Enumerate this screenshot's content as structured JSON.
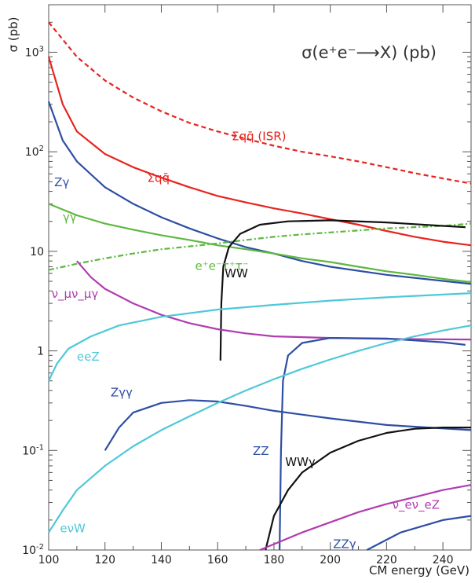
{
  "chart_data": {
    "type": "line",
    "title": "σ(e⁺e⁻⟶X) (pb)",
    "xlabel": "CM energy (GeV)",
    "ylabel": "σ (pb)",
    "xlim": [
      100,
      250
    ],
    "ylim": [
      0.01,
      3000
    ],
    "yscale": "log",
    "x_ticks": [
      100,
      120,
      140,
      160,
      180,
      200,
      220,
      240
    ],
    "y_ticks": [
      {
        "value": 0.01,
        "base": "10",
        "exp": "-2"
      },
      {
        "value": 0.1,
        "base": "10",
        "exp": "-1"
      },
      {
        "value": 1,
        "base": "1",
        "exp": ""
      },
      {
        "value": 10,
        "base": "10",
        "exp": ""
      },
      {
        "value": 100,
        "base": "10",
        "exp": "2"
      },
      {
        "value": 1000,
        "base": "10",
        "exp": "3"
      }
    ],
    "series": [
      {
        "name": "Σqq̄ (ISR)",
        "color": "#e8231d",
        "dash": "dashed",
        "label_pos": [
          165,
          130
        ],
        "points": [
          [
            100,
            2000
          ],
          [
            110,
            900
          ],
          [
            120,
            520
          ],
          [
            130,
            350
          ],
          [
            140,
            255
          ],
          [
            150,
            195
          ],
          [
            160,
            160
          ],
          [
            170,
            135
          ],
          [
            180,
            115
          ],
          [
            190,
            100
          ],
          [
            200,
            90
          ],
          [
            210,
            80
          ],
          [
            220,
            70
          ],
          [
            230,
            61
          ],
          [
            240,
            54
          ],
          [
            250,
            48
          ]
        ]
      },
      {
        "name": "Σqq̄",
        "color": "#e8231d",
        "dash": "solid",
        "label_pos": [
          135,
          50
        ],
        "points": [
          [
            100,
            900
          ],
          [
            105,
            300
          ],
          [
            110,
            160
          ],
          [
            120,
            95
          ],
          [
            130,
            70
          ],
          [
            140,
            55
          ],
          [
            150,
            44
          ],
          [
            160,
            36
          ],
          [
            170,
            31
          ],
          [
            180,
            27
          ],
          [
            190,
            24
          ],
          [
            200,
            21
          ],
          [
            210,
            18.5
          ],
          [
            220,
            16
          ],
          [
            230,
            14
          ],
          [
            240,
            12.5
          ],
          [
            250,
            11.5
          ]
        ]
      },
      {
        "name": "Zγ",
        "color": "#2e4ea3",
        "dash": "solid",
        "label_pos": [
          102,
          45
        ],
        "points": [
          [
            100,
            320
          ],
          [
            105,
            130
          ],
          [
            110,
            80
          ],
          [
            120,
            44
          ],
          [
            130,
            30
          ],
          [
            140,
            22
          ],
          [
            150,
            17
          ],
          [
            160,
            13.5
          ],
          [
            170,
            11
          ],
          [
            180,
            9.5
          ],
          [
            190,
            8
          ],
          [
            200,
            7
          ],
          [
            220,
            5.8
          ],
          [
            250,
            4.7
          ]
        ]
      },
      {
        "name": "γγ",
        "color": "#5db840",
        "dash": "solid",
        "label_pos": [
          105,
          20
        ],
        "points": [
          [
            100,
            30
          ],
          [
            110,
            23
          ],
          [
            120,
            19
          ],
          [
            130,
            16.5
          ],
          [
            140,
            14.5
          ],
          [
            150,
            13
          ],
          [
            160,
            11.5
          ],
          [
            170,
            10.5
          ],
          [
            180,
            9.5
          ],
          [
            190,
            8.5
          ],
          [
            200,
            7.8
          ],
          [
            210,
            7
          ],
          [
            220,
            6.3
          ],
          [
            230,
            5.8
          ],
          [
            240,
            5.3
          ],
          [
            250,
            4.9
          ]
        ]
      },
      {
        "name": "e⁺e⁻τ⁺τ⁻",
        "color": "#5db840",
        "dash": "dashdot",
        "label_pos": [
          152,
          6.5
        ],
        "points": [
          [
            100,
            6.5
          ],
          [
            110,
            7.5
          ],
          [
            120,
            8.5
          ],
          [
            130,
            9.5
          ],
          [
            140,
            10.5
          ],
          [
            150,
            11.2
          ],
          [
            160,
            12
          ],
          [
            170,
            13
          ],
          [
            180,
            14
          ],
          [
            190,
            14.8
          ],
          [
            200,
            15.5
          ],
          [
            210,
            16.2
          ],
          [
            220,
            17
          ],
          [
            230,
            17.5
          ],
          [
            240,
            18
          ],
          [
            250,
            19
          ]
        ]
      },
      {
        "name": "WW",
        "color": "#111111",
        "dash": "solid",
        "label_pos": [
          162.5,
          5.5
        ],
        "points": [
          [
            161,
            0.8
          ],
          [
            161.3,
            3
          ],
          [
            162,
            7
          ],
          [
            164,
            11
          ],
          [
            168,
            15
          ],
          [
            175,
            18.5
          ],
          [
            185,
            20
          ],
          [
            200,
            20.5
          ],
          [
            220,
            19.5
          ],
          [
            240,
            18
          ],
          [
            248,
            17.5
          ]
        ]
      },
      {
        "name": "ν_μν_μγ",
        "color": "#b03cb0",
        "dash": "solid",
        "label_pos": [
          101,
          3.4
        ],
        "points": [
          [
            110,
            8
          ],
          [
            115,
            5.5
          ],
          [
            120,
            4.2
          ],
          [
            130,
            3
          ],
          [
            140,
            2.3
          ],
          [
            150,
            1.9
          ],
          [
            160,
            1.65
          ],
          [
            170,
            1.5
          ],
          [
            180,
            1.4
          ],
          [
            200,
            1.35
          ],
          [
            220,
            1.32
          ],
          [
            250,
            1.3
          ]
        ]
      },
      {
        "name": "eeZ",
        "color": "#4fc8d8",
        "dash": "solid",
        "label_pos": [
          110,
          0.8
        ],
        "points": [
          [
            100,
            0.5
          ],
          [
            103,
            0.75
          ],
          [
            107,
            1.05
          ],
          [
            115,
            1.4
          ],
          [
            125,
            1.8
          ],
          [
            140,
            2.2
          ],
          [
            160,
            2.6
          ],
          [
            180,
            2.9
          ],
          [
            200,
            3.2
          ],
          [
            220,
            3.45
          ],
          [
            250,
            3.8
          ]
        ]
      },
      {
        "name": "Zγγ",
        "color": "#2e4ea3",
        "dash": "solid",
        "label_pos": [
          122,
          0.35
        ],
        "points": [
          [
            120,
            0.1
          ],
          [
            125,
            0.17
          ],
          [
            130,
            0.24
          ],
          [
            140,
            0.3
          ],
          [
            150,
            0.32
          ],
          [
            160,
            0.31
          ],
          [
            170,
            0.28
          ],
          [
            180,
            0.25
          ],
          [
            200,
            0.21
          ],
          [
            220,
            0.18
          ],
          [
            250,
            0.16
          ]
        ]
      },
      {
        "name": "ZZ",
        "color": "#2e4ea3",
        "dash": "solid",
        "label_pos": [
          172.5,
          0.09
        ],
        "points": [
          [
            182,
            0.01
          ],
          [
            182.5,
            0.1
          ],
          [
            183.2,
            0.5
          ],
          [
            185,
            0.9
          ],
          [
            190,
            1.2
          ],
          [
            200,
            1.35
          ],
          [
            220,
            1.33
          ],
          [
            240,
            1.22
          ],
          [
            248,
            1.15
          ]
        ]
      },
      {
        "name": "eνW",
        "color": "#4fc8d8",
        "dash": "solid",
        "label_pos": [
          104,
          0.015
        ],
        "points": [
          [
            100,
            0.015
          ],
          [
            105,
            0.025
          ],
          [
            110,
            0.04
          ],
          [
            120,
            0.07
          ],
          [
            130,
            0.11
          ],
          [
            140,
            0.16
          ],
          [
            150,
            0.22
          ],
          [
            160,
            0.3
          ],
          [
            170,
            0.4
          ],
          [
            180,
            0.52
          ],
          [
            190,
            0.66
          ],
          [
            200,
            0.82
          ],
          [
            210,
            1
          ],
          [
            220,
            1.2
          ],
          [
            230,
            1.4
          ],
          [
            240,
            1.6
          ],
          [
            250,
            1.8
          ]
        ]
      },
      {
        "name": "WWγ",
        "color": "#111111",
        "dash": "solid",
        "label_pos": [
          184,
          0.07
        ],
        "points": [
          [
            177,
            0.01
          ],
          [
            180,
            0.022
          ],
          [
            185,
            0.04
          ],
          [
            190,
            0.06
          ],
          [
            200,
            0.095
          ],
          [
            210,
            0.125
          ],
          [
            220,
            0.15
          ],
          [
            230,
            0.165
          ],
          [
            240,
            0.17
          ],
          [
            250,
            0.17
          ]
        ]
      },
      {
        "name": "ν_eν_eZ",
        "color": "#b03cb0",
        "dash": "solid",
        "label_pos": [
          222,
          0.026
        ],
        "points": [
          [
            175,
            0.01
          ],
          [
            190,
            0.015
          ],
          [
            200,
            0.019
          ],
          [
            210,
            0.024
          ],
          [
            220,
            0.029
          ],
          [
            230,
            0.034
          ],
          [
            240,
            0.04
          ],
          [
            250,
            0.045
          ]
        ]
      },
      {
        "name": "ZZγ",
        "color": "#2e4ea3",
        "dash": "solid",
        "label_pos": [
          201,
          0.0105
        ],
        "points": [
          [
            213,
            0.01
          ],
          [
            225,
            0.015
          ],
          [
            240,
            0.02
          ],
          [
            250,
            0.022
          ]
        ]
      }
    ]
  }
}
